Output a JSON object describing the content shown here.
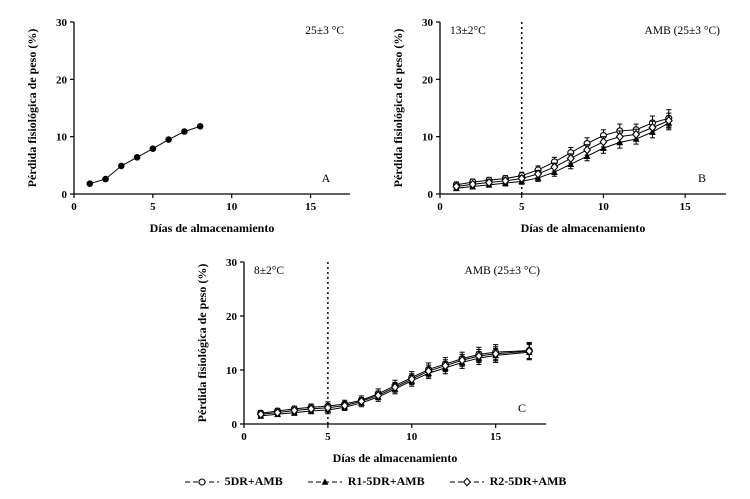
{
  "figure": {
    "xlabel": "Días de almacenamiento",
    "ylabel": "Pérdida fisiológica de peso (%)"
  },
  "legend": {
    "items": [
      {
        "label": "5DR+AMB",
        "marker": "open-circle"
      },
      {
        "label": "R1-5DR+AMB",
        "marker": "filled-triangle"
      },
      {
        "label": "R2-5DR+AMB",
        "marker": "open-diamond"
      }
    ]
  },
  "chart_data": [
    {
      "id": "A",
      "type": "line",
      "panel_label": "A",
      "xlabel": "Días de almacenamiento",
      "ylabel": "Pérdida fisiológica de peso (%)",
      "xlim": [
        0,
        17.5
      ],
      "ylim": [
        0,
        30
      ],
      "xticks": [
        0,
        5,
        10,
        15
      ],
      "yticks": [
        0,
        10,
        20,
        30
      ],
      "annotation_left": null,
      "annotation_right": "25±3 °C",
      "vline_x": null,
      "series": [
        {
          "name": "25±3 °C",
          "marker": "filled-circle",
          "x": [
            1,
            2,
            3,
            4,
            5,
            6,
            7,
            8
          ],
          "y": [
            1.8,
            2.6,
            4.9,
            6.4,
            7.9,
            9.5,
            10.9,
            11.8
          ],
          "err": null
        }
      ]
    },
    {
      "id": "B",
      "type": "line",
      "panel_label": "B",
      "xlabel": "Días de almacenamiento",
      "ylabel": "Pérdida fisiológica de peso (%)",
      "xlim": [
        0,
        17.5
      ],
      "ylim": [
        0,
        30
      ],
      "xticks": [
        0,
        5,
        10,
        15
      ],
      "yticks": [
        0,
        10,
        20,
        30
      ],
      "annotation_left": "13±2°C",
      "annotation_right": "AMB (25±3 °C)",
      "vline_x": 5,
      "series": [
        {
          "name": "5DR+AMB",
          "marker": "open-circle",
          "x": [
            1,
            2,
            3,
            4,
            5,
            6,
            7,
            8,
            9,
            10,
            11,
            12,
            13,
            14
          ],
          "y": [
            1.6,
            2.1,
            2.4,
            2.7,
            3.2,
            4.2,
            5.6,
            7.2,
            8.8,
            10.2,
            11.0,
            11.2,
            12.4,
            13.2
          ],
          "err": [
            0.5,
            0.5,
            0.5,
            0.5,
            0.6,
            0.7,
            0.8,
            0.9,
            1.0,
            1.0,
            1.2,
            1.0,
            1.2,
            1.5
          ]
        },
        {
          "name": "R1-5DR+AMB",
          "marker": "filled-triangle",
          "x": [
            1,
            2,
            3,
            4,
            5,
            6,
            7,
            8,
            9,
            10,
            11,
            12,
            13,
            14
          ],
          "y": [
            1.0,
            1.3,
            1.6,
            1.9,
            2.2,
            2.8,
            3.8,
            5.2,
            6.6,
            8.0,
            9.0,
            9.6,
            10.8,
            12.4
          ],
          "err": [
            0.4,
            0.4,
            0.4,
            0.5,
            0.5,
            0.6,
            0.7,
            0.8,
            0.8,
            0.9,
            1.0,
            0.9,
            1.0,
            1.2
          ]
        },
        {
          "name": "R2-5DR+AMB",
          "marker": "open-diamond",
          "x": [
            1,
            2,
            3,
            4,
            5,
            6,
            7,
            8,
            9,
            10,
            11,
            12,
            13,
            14
          ],
          "y": [
            1.3,
            1.7,
            2.0,
            2.3,
            2.7,
            3.5,
            4.7,
            6.2,
            7.7,
            9.1,
            10.0,
            10.4,
            11.6,
            12.8
          ],
          "err": [
            0.4,
            0.4,
            0.5,
            0.5,
            0.5,
            0.6,
            0.7,
            0.8,
            0.9,
            0.9,
            1.0,
            0.9,
            1.1,
            1.3
          ]
        }
      ]
    },
    {
      "id": "C",
      "type": "line",
      "panel_label": "C",
      "xlabel": "Días de almacenamiento",
      "ylabel": "Pérdida fisiológica de peso (%)",
      "xlim": [
        0,
        18
      ],
      "ylim": [
        0,
        30
      ],
      "xticks": [
        0,
        5,
        10,
        15
      ],
      "yticks": [
        0,
        10,
        20,
        30
      ],
      "annotation_left": "8±2°C",
      "annotation_right": "AMB (25±3 °C)",
      "vline_x": 5,
      "series": [
        {
          "name": "5DR+AMB",
          "marker": "open-circle",
          "x": [
            1,
            2,
            3,
            4,
            5,
            6,
            7,
            8,
            9,
            10,
            11,
            12,
            13,
            14,
            15,
            17
          ],
          "y": [
            2.0,
            2.4,
            2.8,
            3.1,
            3.3,
            3.7,
            4.4,
            5.6,
            7.1,
            8.6,
            10.1,
            11.1,
            12.1,
            12.9,
            13.3,
            13.6
          ],
          "err": [
            0.5,
            0.5,
            0.5,
            0.6,
            0.8,
            0.7,
            0.8,
            0.9,
            1.0,
            1.1,
            1.2,
            1.2,
            1.2,
            1.3,
            1.4,
            1.5
          ]
        },
        {
          "name": "R1-5DR+AMB",
          "marker": "filled-triangle",
          "x": [
            1,
            2,
            3,
            4,
            5,
            6,
            7,
            8,
            9,
            10,
            11,
            12,
            13,
            14,
            15,
            17
          ],
          "y": [
            1.5,
            1.8,
            2.1,
            2.4,
            2.6,
            3.1,
            3.9,
            5.0,
            6.5,
            8.0,
            9.4,
            10.4,
            11.4,
            12.2,
            12.7,
            13.3
          ],
          "err": [
            0.4,
            0.4,
            0.5,
            0.5,
            0.7,
            0.6,
            0.7,
            0.8,
            0.9,
            1.0,
            1.0,
            1.1,
            1.1,
            1.2,
            1.3,
            1.4
          ]
        },
        {
          "name": "R2-5DR+AMB",
          "marker": "open-diamond",
          "x": [
            1,
            2,
            3,
            4,
            5,
            6,
            7,
            8,
            9,
            10,
            11,
            12,
            13,
            14,
            15,
            17
          ],
          "y": [
            1.8,
            2.1,
            2.5,
            2.8,
            3.0,
            3.4,
            4.2,
            5.3,
            6.8,
            8.3,
            9.8,
            10.8,
            11.8,
            12.6,
            13.0,
            13.5
          ],
          "err": [
            0.4,
            0.5,
            0.5,
            0.5,
            0.7,
            0.6,
            0.7,
            0.8,
            0.9,
            1.0,
            1.1,
            1.1,
            1.1,
            1.2,
            1.3,
            1.4
          ]
        }
      ]
    }
  ]
}
